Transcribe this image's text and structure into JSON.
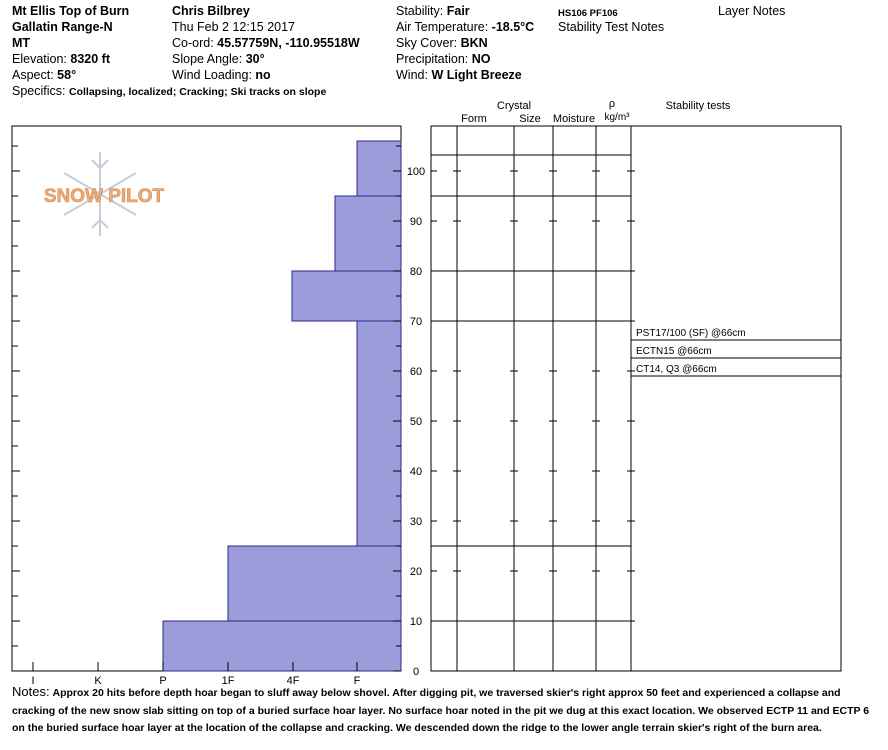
{
  "header": {
    "location": "Mt Ellis Top of Burn",
    "range": "Gallatin Range-N",
    "state": "MT",
    "elevation_label": "Elevation:",
    "elevation_value": "8320 ft",
    "aspect_label": "Aspect:",
    "aspect_value": "58°",
    "specifics_label": "Specifics:",
    "specifics_value": "Collapsing, localized; Cracking; Ski tracks on slope",
    "observer": "Chris Bilbrey",
    "datetime": "Thu Feb 2 12:15 2017",
    "coord_label": "Co-ord:",
    "coord_value": "45.57759N, -110.95518W",
    "slope_label": "Slope Angle:",
    "slope_value": "30°",
    "wind_loading_label": "Wind Loading:",
    "wind_loading_value": "no",
    "stability_label": "Stability:",
    "stability_value": "Fair",
    "air_temp_label": "Air Temperature:",
    "air_temp_value": "-18.5°C",
    "sky_label": "Sky Cover:",
    "sky_value": "BKN",
    "precip_label": "Precipitation:",
    "precip_value": "NO",
    "wind_label": "Wind:",
    "wind_value": "W Light Breeze",
    "hs_pf": "HS106  PF106",
    "stability_test_notes": "Stability Test Notes",
    "layer_notes": "Layer Notes"
  },
  "logo": {
    "text": "SNOW PILOT"
  },
  "table_headers": {
    "crystal": "Crystal",
    "form": "Form",
    "size": "Size",
    "moisture": "Moisture",
    "rho": "ρ",
    "density_unit": "kg/m³",
    "stability_tests": "Stability tests"
  },
  "colors": {
    "bar_fill": "#9d9cdb",
    "bar_stroke": "#2a2a88",
    "logo": "#e8a66a"
  },
  "chart_data": {
    "type": "bar",
    "orientation": "horizontal-step",
    "x_axis": {
      "categories": [
        "I",
        "K",
        "P",
        "1F",
        "4F",
        "F"
      ],
      "note": "hand hardness, higher hardness toward left"
    },
    "y_axis": {
      "ticks": [
        0,
        10,
        20,
        30,
        40,
        50,
        60,
        70,
        80,
        90,
        100
      ],
      "ylim": [
        0,
        106
      ],
      "unit": "cm"
    },
    "layers": [
      {
        "bottom": 0,
        "top": 10,
        "hardness": "P"
      },
      {
        "bottom": 10,
        "top": 25,
        "hardness": "1F"
      },
      {
        "bottom": 25,
        "top": 70,
        "hardness": "F"
      },
      {
        "bottom": 70,
        "top": 80,
        "hardness": "4F-F"
      },
      {
        "bottom": 80,
        "top": 95,
        "hardness": "F-4F"
      },
      {
        "bottom": 95,
        "top": 106,
        "hardness": "F-"
      }
    ],
    "layer_boundaries": [
      10,
      25,
      70,
      80,
      95,
      106
    ],
    "stability_tests": [
      "PST17/100 (SF) @66cm",
      "ECTN15 @66cm",
      "CT14, Q3 @66cm"
    ]
  },
  "notes": {
    "label": "Notes:",
    "text": "Approx 20 hits before depth hoar began to sluff away below shovel. After digging pit, we traversed skier's right approx 50 feet and experienced a collapse and cracking of the new snow slab sitting on top of a buried surface hoar layer. No surface hoar noted in the pit we dug at this exact location. We observed ECTP 11 and ECTP 6 on the buried surface hoar layer at the location of the collapse and cracking. We descended down the ridge to the lower angle terrain skier's right of the burn area."
  }
}
